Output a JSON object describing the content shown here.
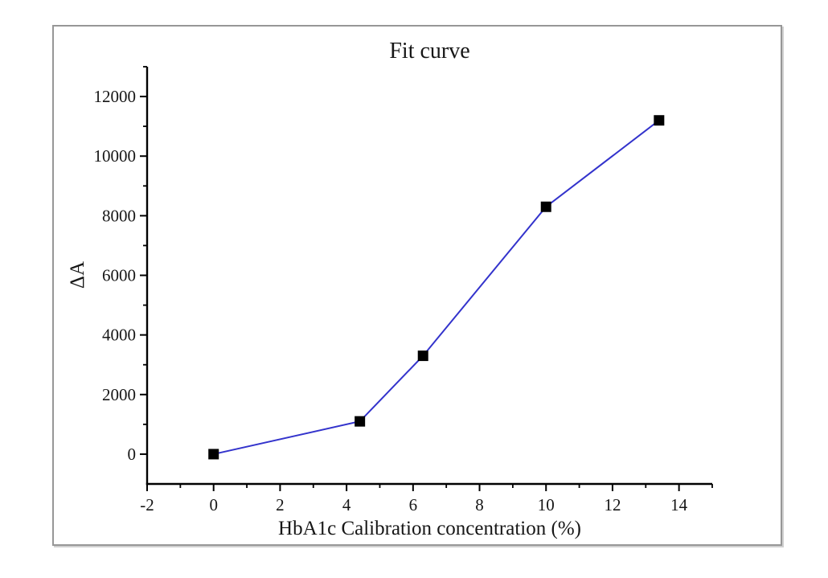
{
  "chart_data": {
    "type": "line",
    "title": "Fit curve",
    "xlabel": "HbA1c Calibration concentration (%)",
    "ylabel": "ΔA",
    "x": [
      0,
      4.4,
      6.3,
      10,
      13.4
    ],
    "y": [
      0,
      1100,
      3300,
      8300,
      11200
    ],
    "xlim": [
      -2,
      15
    ],
    "ylim": [
      -1000,
      13000
    ],
    "x_major_ticks": [
      -2,
      0,
      2,
      4,
      6,
      8,
      10,
      12,
      14
    ],
    "x_minor_step": 1,
    "y_major_ticks": [
      0,
      2000,
      4000,
      6000,
      8000,
      10000,
      12000
    ],
    "y_minor_step": 1000,
    "grid": false,
    "legend_position": "none",
    "line_color": "#3333cc",
    "line_width": 2,
    "marker": "square",
    "marker_color": "#000000",
    "marker_size": 13,
    "axis_color": "#000000",
    "tick_direction": "out"
  }
}
